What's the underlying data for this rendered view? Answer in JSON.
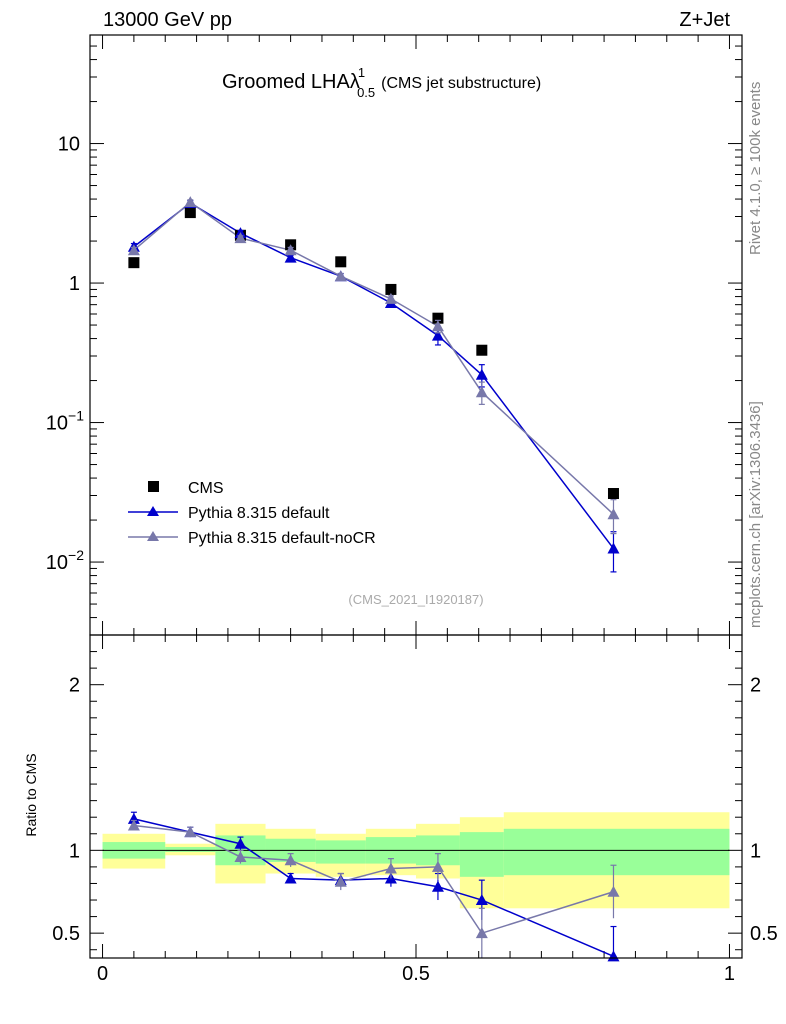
{
  "header": {
    "left": "13000 GeV pp",
    "right": "Z+Jet"
  },
  "side_labels": {
    "rivet": "Rivet 4.1.0, ≥ 100k events",
    "mcplots": "mcplots.cern.ch [arXiv:1306.3436]"
  },
  "chart_data": [
    {
      "type": "scatter",
      "title": "Groomed LHA",
      "title_symbol": "λ",
      "title_sup": "1",
      "title_sub": "0.5",
      "title_suffix": "(CMS jet substructure)",
      "analysis_id": "(CMS_2021_I1920187)",
      "yscale": "log",
      "ylim": [
        0.003,
        60
      ],
      "xlim": [
        -0.02,
        1.02
      ],
      "yticks": [
        {
          "value": 10,
          "label": "10"
        },
        {
          "value": 1,
          "label": "1"
        },
        {
          "value": 0.1,
          "label": "10",
          "exp": "−1"
        },
        {
          "value": 0.01,
          "label": "10",
          "exp": "−2"
        }
      ],
      "legend": {
        "position": "bottom-left",
        "entries": [
          "CMS",
          "Pythia 8.315 default",
          "Pythia 8.315 default-noCR"
        ]
      },
      "series": [
        {
          "name": "CMS",
          "marker": "square",
          "color": "#000000",
          "x": [
            0.05,
            0.14,
            0.22,
            0.3,
            0.38,
            0.46,
            0.535,
            0.605,
            0.815
          ],
          "y": [
            1.4,
            3.2,
            2.2,
            1.88,
            1.42,
            0.9,
            0.56,
            0.33,
            0.031
          ]
        },
        {
          "name": "Pythia 8.315 default",
          "marker": "triangle",
          "color": "#0000cc",
          "x": [
            0.05,
            0.14,
            0.22,
            0.3,
            0.38,
            0.46,
            0.535,
            0.605,
            0.815
          ],
          "y": [
            1.82,
            3.75,
            2.28,
            1.52,
            1.12,
            0.72,
            0.42,
            0.22,
            0.0125
          ],
          "err": [
            0.1,
            0.15,
            0.1,
            0.06,
            0.05,
            0.04,
            0.06,
            0.04,
            0.004
          ]
        },
        {
          "name": "Pythia 8.315 default-noCR",
          "marker": "triangle",
          "color": "#7878aa",
          "x": [
            0.05,
            0.14,
            0.22,
            0.3,
            0.38,
            0.46,
            0.535,
            0.605,
            0.815
          ],
          "y": [
            1.72,
            3.8,
            2.1,
            1.72,
            1.12,
            0.77,
            0.49,
            0.165,
            0.022
          ],
          "err": [
            0.08,
            0.15,
            0.08,
            0.08,
            0.05,
            0.04,
            0.05,
            0.03,
            0.006
          ]
        }
      ]
    },
    {
      "type": "scatter",
      "ylabel": "Ratio to CMS",
      "ylim": [
        0.35,
        2.3
      ],
      "xlim": [
        -0.02,
        1.02
      ],
      "yticks": [
        {
          "value": 2,
          "label": "2"
        },
        {
          "value": 1,
          "label": "1"
        },
        {
          "value": 0.5,
          "label": "0.5"
        }
      ],
      "xticks": [
        {
          "value": 0,
          "label": "0"
        },
        {
          "value": 0.5,
          "label": "0.5"
        },
        {
          "value": 1,
          "label": "1"
        }
      ],
      "bands": {
        "yellow_color": "#ffff99",
        "green_color": "#99ff99",
        "bins": [
          {
            "x0": 0.0,
            "x1": 0.1,
            "y_lo": 0.89,
            "y_hi": 1.1,
            "g_lo": 0.95,
            "g_hi": 1.05
          },
          {
            "x0": 0.1,
            "x1": 0.18,
            "y_lo": 0.97,
            "y_hi": 1.04,
            "g_lo": 0.99,
            "g_hi": 1.02
          },
          {
            "x0": 0.18,
            "x1": 0.26,
            "y_lo": 0.8,
            "y_hi": 1.16,
            "g_lo": 0.91,
            "g_hi": 1.09
          },
          {
            "x0": 0.26,
            "x1": 0.34,
            "y_lo": 0.86,
            "y_hi": 1.13,
            "g_lo": 0.93,
            "g_hi": 1.07
          },
          {
            "x0": 0.34,
            "x1": 0.42,
            "y_lo": 0.84,
            "y_hi": 1.1,
            "g_lo": 0.92,
            "g_hi": 1.06
          },
          {
            "x0": 0.42,
            "x1": 0.5,
            "y_lo": 0.85,
            "y_hi": 1.13,
            "g_lo": 0.92,
            "g_hi": 1.08
          },
          {
            "x0": 0.5,
            "x1": 0.57,
            "y_lo": 0.83,
            "y_hi": 1.16,
            "g_lo": 0.91,
            "g_hi": 1.09
          },
          {
            "x0": 0.57,
            "x1": 0.64,
            "y_lo": 0.65,
            "y_hi": 1.2,
            "g_lo": 0.84,
            "g_hi": 1.11
          },
          {
            "x0": 0.64,
            "x1": 1.0,
            "y_lo": 0.65,
            "y_hi": 1.23,
            "g_lo": 0.85,
            "g_hi": 1.13
          }
        ]
      },
      "series": [
        {
          "name": "Pythia 8.315 default",
          "marker": "triangle",
          "color": "#0000cc",
          "x": [
            0.05,
            0.14,
            0.22,
            0.3,
            0.38,
            0.46,
            0.535,
            0.605,
            0.815
          ],
          "y": [
            1.19,
            1.11,
            1.04,
            0.83,
            0.82,
            0.83,
            0.78,
            0.7,
            0.36
          ],
          "err": [
            0.04,
            0.03,
            0.04,
            0.03,
            0.04,
            0.05,
            0.08,
            0.12,
            0.18
          ]
        },
        {
          "name": "Pythia 8.315 default-noCR",
          "marker": "triangle",
          "color": "#7878aa",
          "x": [
            0.05,
            0.14,
            0.22,
            0.3,
            0.38,
            0.46,
            0.535,
            0.605,
            0.815
          ],
          "y": [
            1.15,
            1.11,
            0.96,
            0.94,
            0.81,
            0.89,
            0.9,
            0.5,
            0.75
          ],
          "err": [
            0.03,
            0.03,
            0.04,
            0.04,
            0.05,
            0.06,
            0.08,
            0.15,
            0.16
          ]
        }
      ]
    }
  ]
}
